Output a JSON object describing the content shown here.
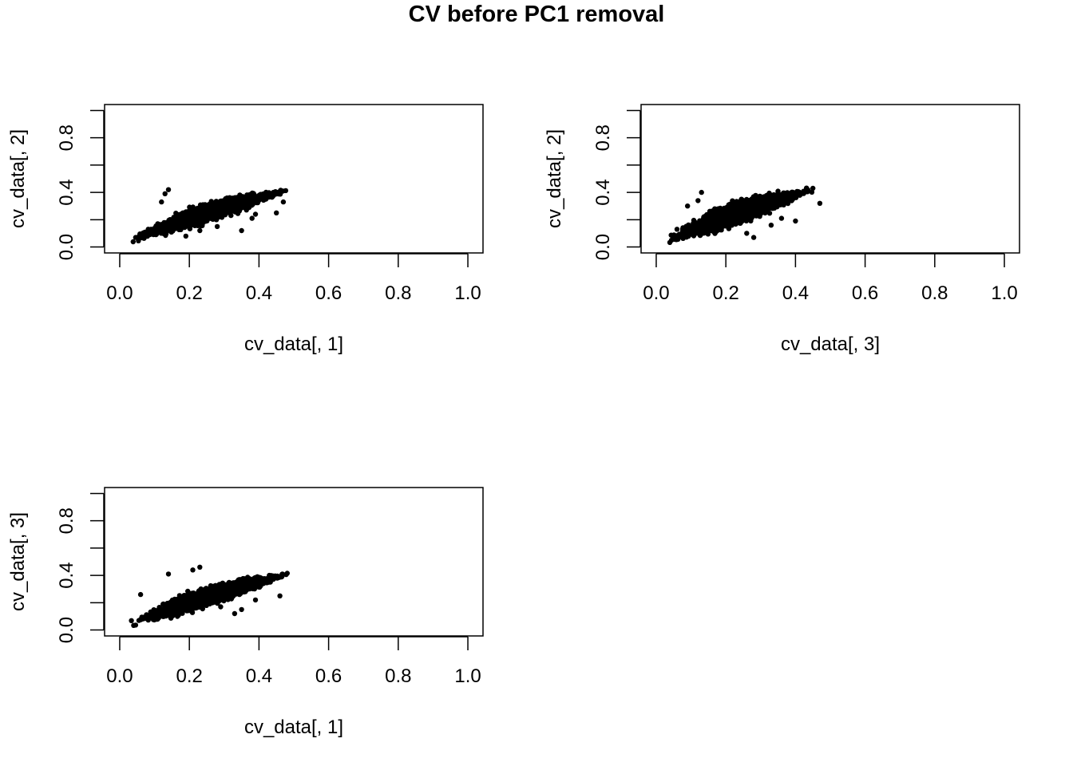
{
  "figure": {
    "title": "CV before PC1 removal"
  },
  "chart_data": [
    {
      "type": "scatter",
      "panel": "top-left",
      "xlabel": "cv_data[, 1]",
      "ylabel": "cv_data[, 2]",
      "xlim": [
        0.0,
        1.0
      ],
      "ylim": [
        0.0,
        1.0
      ],
      "xticks": [
        "0.0",
        "0.2",
        "0.4",
        "0.6",
        "0.8",
        "1.0"
      ],
      "yticks": [
        "0.0",
        "0.4",
        "0.8"
      ],
      "grid": false,
      "point_color": "#000000",
      "cloud": {
        "x_range": [
          0.02,
          0.5
        ],
        "y_at_x_min": 0.02,
        "y_at_x_max": 0.43,
        "spread": 0.05
      },
      "outliers": [
        {
          "x": 0.14,
          "y": 0.42
        },
        {
          "x": 0.13,
          "y": 0.39
        },
        {
          "x": 0.12,
          "y": 0.33
        },
        {
          "x": 0.19,
          "y": 0.08
        },
        {
          "x": 0.35,
          "y": 0.12
        },
        {
          "x": 0.38,
          "y": 0.21
        },
        {
          "x": 0.39,
          "y": 0.24
        },
        {
          "x": 0.45,
          "y": 0.25
        },
        {
          "x": 0.09,
          "y": 0.13
        },
        {
          "x": 0.23,
          "y": 0.12
        },
        {
          "x": 0.47,
          "y": 0.33
        },
        {
          "x": 0.28,
          "y": 0.15
        }
      ]
    },
    {
      "type": "scatter",
      "panel": "top-right",
      "xlabel": "cv_data[, 3]",
      "ylabel": "cv_data[, 2]",
      "xlim": [
        0.0,
        1.0
      ],
      "ylim": [
        0.0,
        1.0
      ],
      "xticks": [
        "0.0",
        "0.2",
        "0.4",
        "0.6",
        "0.8",
        "1.0"
      ],
      "yticks": [
        "0.0",
        "0.4",
        "0.8"
      ],
      "grid": false,
      "point_color": "#000000",
      "cloud": {
        "x_range": [
          0.02,
          0.46
        ],
        "y_at_x_min": 0.02,
        "y_at_x_max": 0.43,
        "spread": 0.06
      },
      "outliers": [
        {
          "x": 0.13,
          "y": 0.4
        },
        {
          "x": 0.12,
          "y": 0.34
        },
        {
          "x": 0.28,
          "y": 0.07
        },
        {
          "x": 0.26,
          "y": 0.1
        },
        {
          "x": 0.33,
          "y": 0.16
        },
        {
          "x": 0.4,
          "y": 0.19
        },
        {
          "x": 0.47,
          "y": 0.32
        },
        {
          "x": 0.45,
          "y": 0.43
        },
        {
          "x": 0.36,
          "y": 0.21
        },
        {
          "x": 0.09,
          "y": 0.3
        }
      ]
    },
    {
      "type": "scatter",
      "panel": "bottom-left",
      "xlabel": "cv_data[, 1]",
      "ylabel": "cv_data[, 3]",
      "xlim": [
        0.0,
        1.0
      ],
      "ylim": [
        0.0,
        1.0
      ],
      "xticks": [
        "0.0",
        "0.2",
        "0.4",
        "0.6",
        "0.8",
        "1.0"
      ],
      "yticks": [
        "0.0",
        "0.4",
        "0.8"
      ],
      "grid": false,
      "point_color": "#000000",
      "cloud": {
        "x_range": [
          0.02,
          0.5
        ],
        "y_at_x_min": 0.02,
        "y_at_x_max": 0.42,
        "spread": 0.05
      },
      "outliers": [
        {
          "x": 0.14,
          "y": 0.41
        },
        {
          "x": 0.06,
          "y": 0.26
        },
        {
          "x": 0.21,
          "y": 0.44
        },
        {
          "x": 0.23,
          "y": 0.46
        },
        {
          "x": 0.33,
          "y": 0.12
        },
        {
          "x": 0.35,
          "y": 0.15
        },
        {
          "x": 0.46,
          "y": 0.25
        },
        {
          "x": 0.39,
          "y": 0.22
        },
        {
          "x": 0.29,
          "y": 0.17
        }
      ]
    }
  ]
}
